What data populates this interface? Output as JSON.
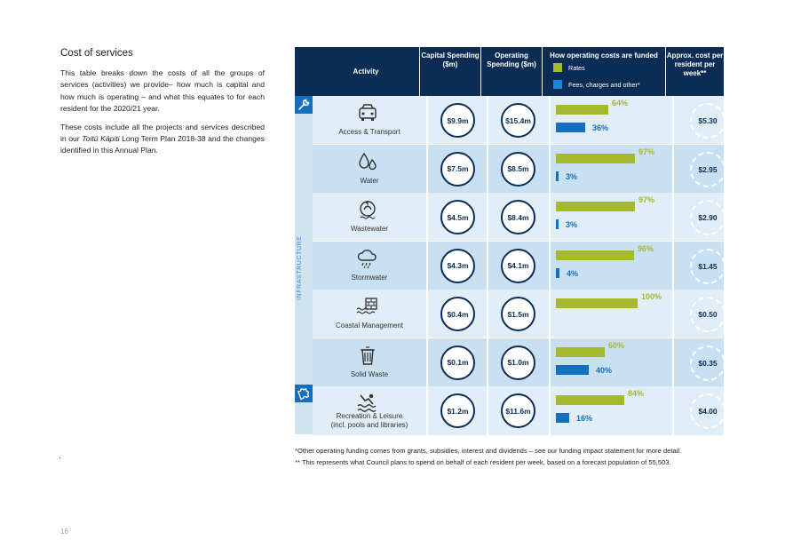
{
  "left_text": {
    "heading": "Cost of services",
    "para1": "This table breaks down the costs of all the groups of services (activities) we provide– how much is capital and how much is operating – and what this equates to for each resident for the 2020/21 year.",
    "para2_before": "These costs include all the projects and services described in our ",
    "para2_emph": "Toitū Kāpiti",
    "para2_after": " Long Term Plan 2018-38 and the changes identified in this Annual Plan.",
    "stray_mark": "."
  },
  "page_number": "16",
  "table": {
    "headers": {
      "activity": "Activity",
      "capital": "Capital Spending ($m)",
      "operating": "Operating Spending ($m)",
      "funding": "How operating costs are funded",
      "per_resident": "Approx. cost per resident per week**"
    },
    "legend": {
      "rates": "Rates",
      "fees": "Fees, charges and other*"
    },
    "group_label": "INFRASTRUCTURE",
    "rows": [
      {
        "name": "Access & Transport",
        "icon": "car-icon",
        "capital": "$9.9m",
        "operating": "$15.4m",
        "rates_pct": 64,
        "rates_label": "64%",
        "fees_pct": 36,
        "fees_label": "36%",
        "per_resident": "$5.30"
      },
      {
        "name": "Water",
        "icon": "water-drops-icon",
        "capital": "$7.5m",
        "operating": "$8.5m",
        "rates_pct": 97,
        "rates_label": "97%",
        "fees_pct": 3,
        "fees_label": "3%",
        "per_resident": "$2.95"
      },
      {
        "name": "Wastewater",
        "icon": "wastewater-icon",
        "capital": "$4.5m",
        "operating": "$8.4m",
        "rates_pct": 97,
        "rates_label": "97%",
        "fees_pct": 3,
        "fees_label": "3%",
        "per_resident": "$2.90"
      },
      {
        "name": "Stormwater",
        "icon": "rain-cloud-icon",
        "capital": "$4.3m",
        "operating": "$4.1m",
        "rates_pct": 96,
        "rates_label": "96%",
        "fees_pct": 4,
        "fees_label": "4%",
        "per_resident": "$1.45"
      },
      {
        "name": "Coastal Management",
        "icon": "seawall-icon",
        "capital": "$0.4m",
        "operating": "$1.5m",
        "rates_pct": 100,
        "rates_label": "100%",
        "fees_pct": 0,
        "fees_label": "",
        "per_resident": "$0.50"
      },
      {
        "name": "Solid Waste",
        "icon": "bin-icon",
        "capital": "$0.1m",
        "operating": "$1.0m",
        "rates_pct": 60,
        "rates_label": "60%",
        "fees_pct": 40,
        "fees_label": "40%",
        "per_resident": "$0.35"
      },
      {
        "name": "Recreation & Leisure (incl. pools and libraries)",
        "icon": "swimmer-icon",
        "capital": "$1.2m",
        "operating": "$11.6m",
        "rates_pct": 84,
        "rates_label": "84%",
        "fees_pct": 16,
        "fees_label": "16%",
        "per_resident": "$4.00"
      }
    ]
  },
  "footnotes": {
    "note1": "*Other operating funding comes from grants, subsidies, interest and dividends – see our funding impact statement for more detail.",
    "note2": "** This represents what Council plans to spend on behalf of each resident per week, based on a forecast population of 55,503."
  },
  "colors": {
    "header": "#0b2d55",
    "rates": "#a6b92c",
    "fees": "#1270bf",
    "row_light": "#e1eef7",
    "row_dark": "#c8e0f1"
  }
}
